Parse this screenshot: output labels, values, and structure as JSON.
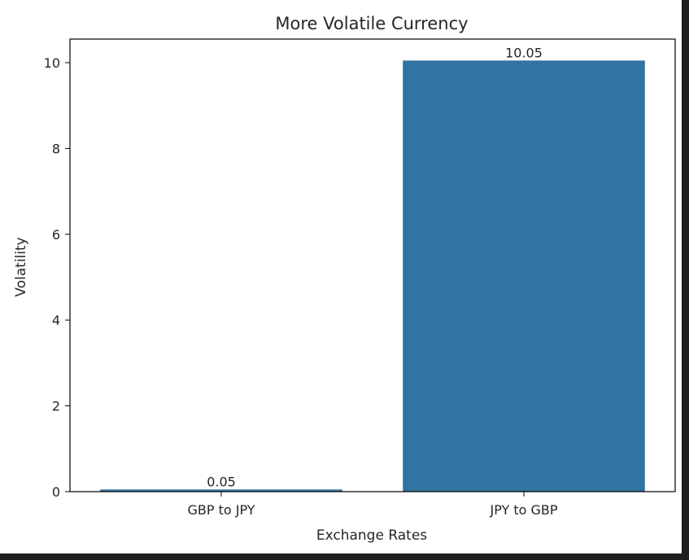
{
  "chart_data": {
    "type": "bar",
    "title": "More Volatile Currency",
    "xlabel": "Exchange Rates",
    "ylabel": "Volatility",
    "categories": [
      "GBP to JPY",
      "JPY to GBP"
    ],
    "values": [
      0.05,
      10.05
    ],
    "data_labels": [
      "0.05",
      "10.05"
    ],
    "ylim": [
      0,
      10.55
    ],
    "yticks": [
      0,
      2,
      4,
      6,
      8,
      10
    ],
    "ytick_labels": [
      "0",
      "2",
      "4",
      "6",
      "8",
      "10"
    ],
    "grid": false,
    "bar_color": "#3274a1"
  }
}
